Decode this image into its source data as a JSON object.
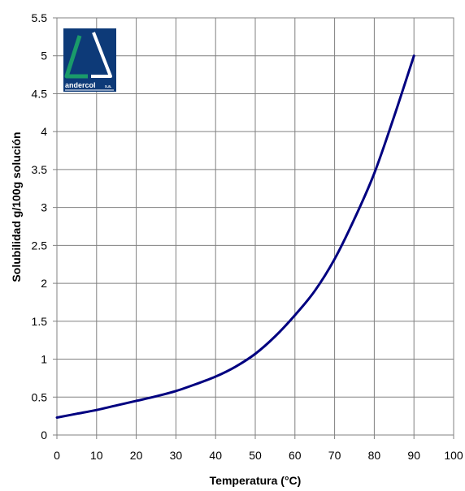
{
  "chart_data": {
    "type": "line",
    "title": "",
    "xlabel": "Temperatura (°C)",
    "ylabel": "Solubilidad g/100g solución",
    "xlim": [
      0,
      100
    ],
    "ylim": [
      0,
      5.5
    ],
    "x_ticks": [
      "0",
      "10",
      "20",
      "30",
      "40",
      "50",
      "60",
      "70",
      "80",
      "90",
      "100"
    ],
    "y_ticks": [
      "0",
      "0.5",
      "1",
      "1.5",
      "2",
      "2.5",
      "3",
      "3.5",
      "4",
      "4.5",
      "5",
      "5.5"
    ],
    "grid": true,
    "legend": "none",
    "series": [
      {
        "color": "#000080",
        "x": [
          0,
          5,
          10,
          15,
          20,
          25,
          30,
          35,
          40,
          45,
          50,
          55,
          60,
          65,
          70,
          75,
          80,
          85,
          90
        ],
        "y": [
          0.23,
          0.28,
          0.33,
          0.39,
          0.45,
          0.51,
          0.58,
          0.67,
          0.77,
          0.9,
          1.07,
          1.3,
          1.58,
          1.9,
          2.32,
          2.85,
          3.45,
          4.2,
          5.0
        ]
      }
    ]
  },
  "logo": {
    "text": "andercol",
    "suffix": "s.a.",
    "bg_color": "#0d3a78",
    "accent_color": "#1a9b6a"
  }
}
